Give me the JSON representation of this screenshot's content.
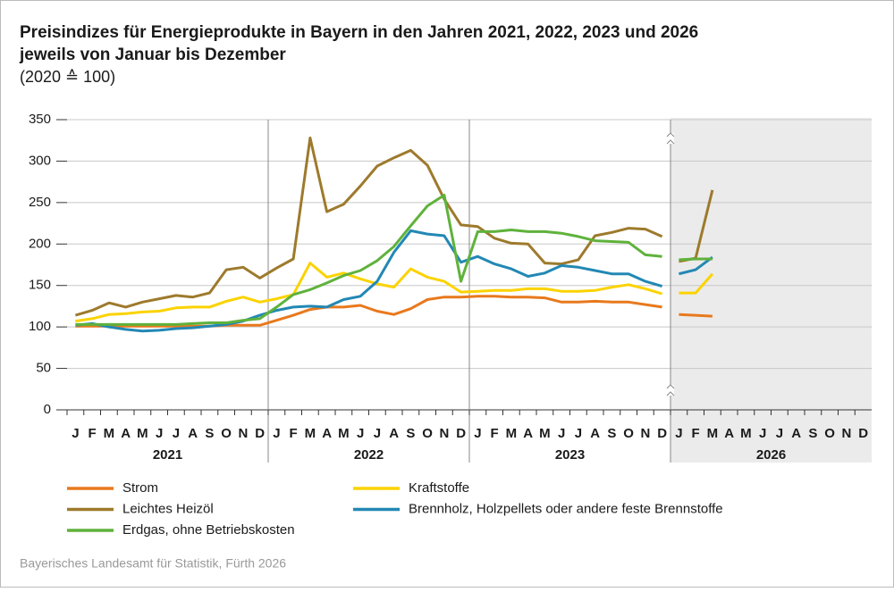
{
  "chart_data": {
    "type": "line",
    "title": "Preisindizes für Energieprodukte in Bayern in den Jahren 2021, 2022, 2023 und 2026",
    "title_line2": "jeweils von Januar bis Dezember",
    "subtitle": "(2020 ≙ 100)",
    "source": "Bayerisches Landesamt für Statistik, Fürth 2026",
    "years": [
      "2021",
      "2022",
      "2023",
      "2026"
    ],
    "categories": [
      "J",
      "F",
      "M",
      "A",
      "M",
      "J",
      "J",
      "A",
      "S",
      "O",
      "N",
      "D",
      "J",
      "F",
      "M",
      "A",
      "M",
      "J",
      "J",
      "A",
      "S",
      "O",
      "N",
      "D",
      "J",
      "F",
      "M",
      "A",
      "M",
      "J",
      "J",
      "A",
      "S",
      "O",
      "N",
      "D",
      "J",
      "F",
      "M",
      "A",
      "M",
      "J",
      "J",
      "A",
      "S",
      "O",
      "N",
      "D"
    ],
    "ylim": [
      0,
      350
    ],
    "yticks": [
      0,
      50,
      100,
      150,
      200,
      250,
      300,
      350
    ],
    "grid": true,
    "series": [
      {
        "name": "Strom",
        "color": "#e8791d",
        "values": [
          101,
          101,
          101,
          101,
          101,
          101,
          101,
          101,
          101,
          102,
          102,
          102,
          108,
          114,
          121,
          124,
          124,
          126,
          119,
          115,
          122,
          133,
          136,
          136,
          137,
          137,
          136,
          136,
          135,
          130,
          130,
          131,
          130,
          130,
          127,
          124,
          115,
          114,
          113,
          null,
          null,
          null,
          null,
          null,
          null,
          null,
          null,
          null
        ]
      },
      {
        "name": "Kraftstoffe",
        "color": "#fbd300",
        "values": [
          107,
          110,
          115,
          116,
          118,
          119,
          123,
          124,
          124,
          131,
          136,
          130,
          134,
          139,
          177,
          160,
          165,
          158,
          152,
          148,
          170,
          160,
          155,
          142,
          143,
          144,
          144,
          146,
          146,
          143,
          143,
          144,
          148,
          151,
          146,
          140,
          141,
          141,
          164,
          null,
          null,
          null,
          null,
          null,
          null,
          null,
          null,
          null
        ]
      },
      {
        "name": "Leichtes Heizöl",
        "color": "#9d7a2c",
        "values": [
          114,
          120,
          129,
          124,
          130,
          134,
          138,
          136,
          141,
          169,
          172,
          159,
          171,
          182,
          328,
          239,
          248,
          270,
          294,
          304,
          313,
          295,
          254,
          223,
          221,
          207,
          201,
          200,
          177,
          176,
          181,
          210,
          214,
          219,
          218,
          209,
          179,
          183,
          265,
          null,
          null,
          null,
          null,
          null,
          null,
          null,
          null,
          null
        ]
      },
      {
        "name": "Brennholz, Holzpellets oder andere feste Brennstoffe",
        "color": "#2288b4",
        "values": [
          102,
          104,
          100,
          97,
          95,
          96,
          98,
          99,
          101,
          103,
          107,
          114,
          120,
          124,
          125,
          124,
          133,
          137,
          155,
          190,
          216,
          212,
          210,
          178,
          185,
          176,
          170,
          161,
          165,
          174,
          172,
          168,
          164,
          164,
          155,
          149,
          164,
          169,
          184,
          null,
          null,
          null,
          null,
          null,
          null,
          null,
          null,
          null
        ]
      },
      {
        "name": "Erdgas, ohne Betriebskosten",
        "color": "#5fb23b",
        "values": [
          103,
          103,
          103,
          103,
          103,
          103,
          103,
          104,
          105,
          105,
          108,
          110,
          124,
          139,
          145,
          153,
          162,
          168,
          180,
          197,
          222,
          246,
          259,
          155,
          215,
          215,
          217,
          215,
          215,
          213,
          209,
          204,
          203,
          202,
          187,
          185,
          181,
          182,
          182,
          null,
          null,
          null,
          null,
          null,
          null,
          null,
          null,
          null
        ]
      }
    ]
  }
}
